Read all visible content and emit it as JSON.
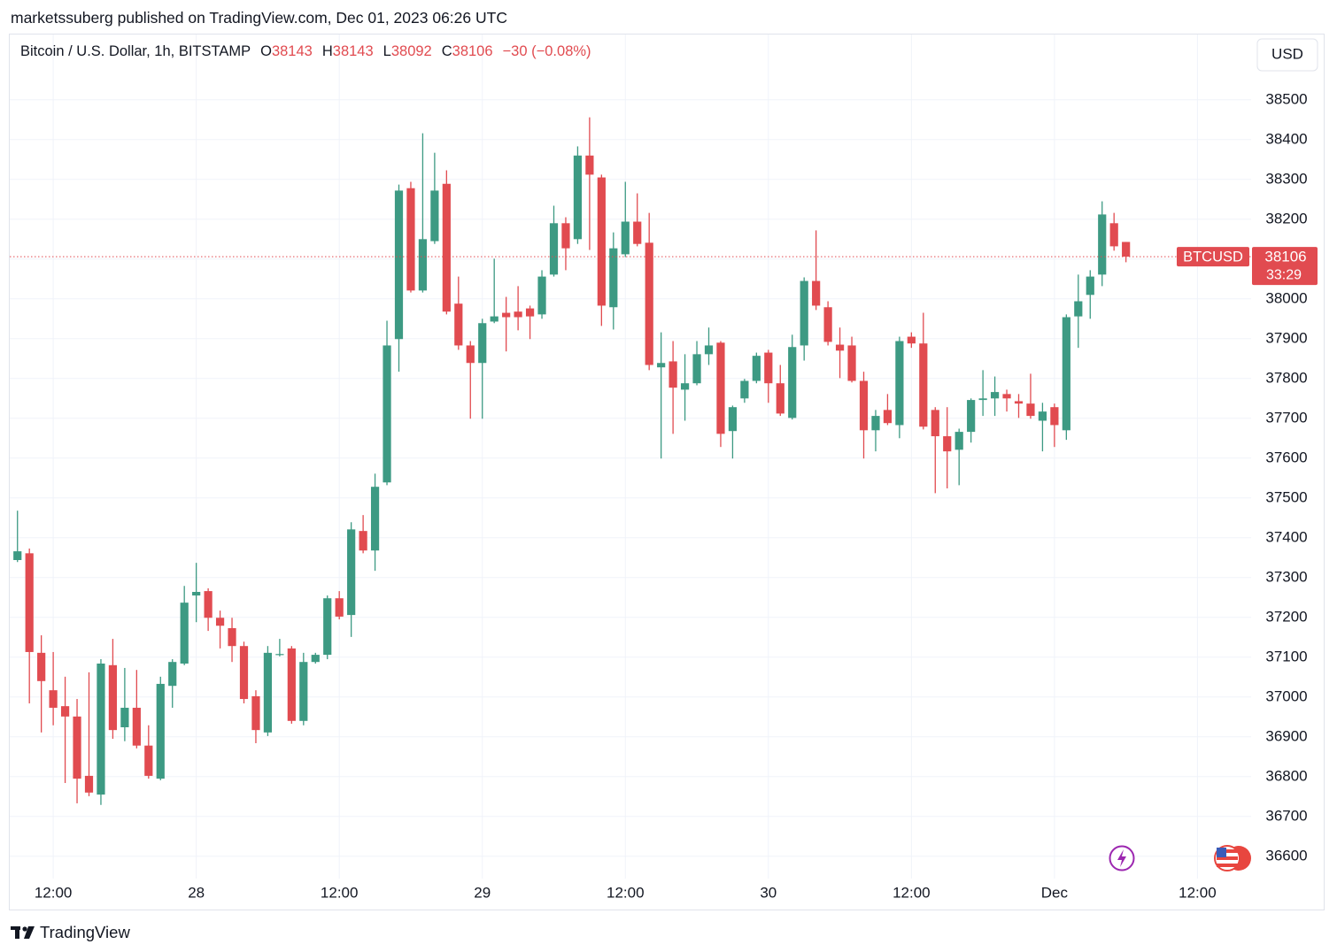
{
  "header": {
    "published": "marketssuberg published on TradingView.com, Dec 01, 2023 06:26 UTC"
  },
  "footer": {
    "brand": "TradingView"
  },
  "chart_data": {
    "type": "candlestick",
    "title": "Bitcoin / U.S. Dollar, 1h, BITSTAMP",
    "open_letter": "O",
    "high_letter": "H",
    "low_letter": "L",
    "close_letter": "C",
    "change": "−30 (−0.08%)",
    "currency": "USD",
    "symbol_tag": "BTCUSD",
    "countdown": "33:29",
    "up_color": "#3d9a83",
    "down_color": "#e14b50",
    "grid": true,
    "last_price_line": true,
    "ylim": [
      36544,
      38664
    ],
    "yticks": [
      36600,
      36700,
      36800,
      36900,
      37000,
      37100,
      37200,
      37300,
      37400,
      37500,
      37600,
      37700,
      37800,
      37900,
      38000,
      38100,
      38200,
      38300,
      38400,
      38500
    ],
    "categories": [
      null,
      null,
      null,
      "12:00",
      null,
      null,
      null,
      null,
      null,
      null,
      null,
      null,
      null,
      null,
      null,
      "28",
      null,
      null,
      null,
      null,
      null,
      null,
      null,
      null,
      null,
      null,
      null,
      "12:00",
      null,
      null,
      null,
      null,
      null,
      null,
      null,
      null,
      null,
      null,
      null,
      "29",
      null,
      null,
      null,
      null,
      null,
      null,
      null,
      null,
      null,
      null,
      null,
      "12:00",
      null,
      null,
      null,
      null,
      null,
      null,
      null,
      null,
      null,
      null,
      null,
      "30",
      null,
      null,
      null,
      null,
      null,
      null,
      null,
      null,
      null,
      null,
      null,
      "12:00",
      null,
      null,
      null,
      null,
      null,
      null,
      null,
      null,
      null,
      null,
      null,
      "Dec",
      null,
      null,
      null,
      null,
      null,
      null,
      null,
      null,
      null,
      null,
      null,
      "12:00",
      null,
      null,
      null,
      null
    ],
    "open": [
      37344,
      37361,
      37111,
      37017,
      36977,
      36951,
      36802,
      36755,
      37080,
      36924,
      36973,
      36878,
      36795,
      37028,
      37084,
      37255,
      37266,
      37199,
      37173,
      37128,
      37002,
      36911,
      37106,
      37122,
      36940,
      37088,
      37106,
      37248,
      37206,
      37417,
      37368,
      37539,
      37899,
      38278,
      38021,
      38145,
      38289,
      37988,
      37883,
      37839,
      37943,
      37965,
      37968,
      37976,
      37961,
      38061,
      38190,
      38150,
      38360,
      38305,
      37979,
      38112,
      38194,
      38141,
      37828,
      37843,
      37772,
      37788,
      37861,
      37890,
      37668,
      37750,
      37794,
      37865,
      37788,
      37701,
      37883,
      38045,
      37979,
      37885,
      37883,
      37794,
      37670,
      37721,
      37683,
      37905,
      37888,
      37721,
      37655,
      37621,
      37666,
      37746,
      37750,
      37761,
      37743,
      37737,
      37694,
      37728,
      37670,
      37956,
      38010,
      38061,
      38190,
      38143,
      null,
      null,
      null,
      null,
      null,
      null,
      null,
      null,
      null,
      null
    ],
    "high": [
      37468,
      37373,
      37155,
      37113,
      37051,
      36995,
      37062,
      37095,
      37146,
      37073,
      37068,
      36929,
      37051,
      37095,
      37279,
      37337,
      37273,
      37217,
      37199,
      37139,
      37017,
      37128,
      37146,
      37128,
      37111,
      37111,
      37255,
      37266,
      37439,
      37457,
      37561,
      37945,
      38287,
      38294,
      38416,
      38367,
      38323,
      38056,
      37894,
      37950,
      38101,
      38005,
      38032,
      37983,
      38072,
      38234,
      38205,
      38383,
      38456,
      38312,
      38167,
      38294,
      38265,
      38216,
      37916,
      37894,
      37861,
      37894,
      37928,
      37894,
      37732,
      37799,
      37865,
      37872,
      37834,
      37910,
      38054,
      38172,
      37994,
      37928,
      37905,
      37817,
      37721,
      37761,
      37905,
      37916,
      37965,
      37728,
      37728,
      37674,
      37750,
      37821,
      37805,
      37772,
      37761,
      37812,
      37739,
      37737,
      37961,
      38061,
      38072,
      38245,
      38216,
      38143,
      null,
      null,
      null,
      null,
      null,
      null,
      null,
      null,
      null,
      null
    ],
    "low": [
      37339,
      36984,
      36911,
      36929,
      36784,
      36733,
      36751,
      36729,
      36895,
      36889,
      36871,
      36795,
      36791,
      36973,
      37080,
      37188,
      37166,
      37122,
      37088,
      36984,
      36884,
      36902,
      37102,
      36933,
      36929,
      37084,
      37095,
      37195,
      37151,
      37361,
      37317,
      37532,
      37817,
      38016,
      38016,
      38138,
      37961,
      37872,
      37699,
      37699,
      37939,
      37868,
      37921,
      37899,
      37950,
      38056,
      38072,
      38138,
      38123,
      37932,
      37923,
      38105,
      38132,
      37821,
      37599,
      37661,
      37694,
      37783,
      37834,
      37628,
      37599,
      37739,
      37788,
      37739,
      37706,
      37697,
      37845,
      37972,
      37883,
      37801,
      37790,
      37599,
      37617,
      37683,
      37650,
      37877,
      37672,
      37512,
      37524,
      37532,
      37639,
      37706,
      37706,
      37717,
      37701,
      37699,
      37617,
      37628,
      37646,
      37877,
      37950,
      38032,
      38121,
      38092,
      null,
      null,
      null,
      null,
      null,
      null,
      null,
      null,
      null,
      null
    ],
    "close": [
      37366,
      37113,
      37040,
      36973,
      36951,
      36795,
      36760,
      37084,
      36917,
      36973,
      36878,
      36802,
      37033,
      37088,
      37237,
      37264,
      37199,
      37179,
      37128,
      36995,
      36917,
      37111,
      37108,
      36940,
      37088,
      37106,
      37248,
      37202,
      37421,
      37368,
      37528,
      37883,
      38272,
      38021,
      38150,
      38272,
      37968,
      37883,
      37839,
      37939,
      37956,
      37954,
      37954,
      37956,
      38056,
      38190,
      38127,
      38360,
      38312,
      37983,
      38127,
      38194,
      38138,
      37834,
      37839,
      37777,
      37788,
      37861,
      37883,
      37661,
      37728,
      37794,
      37857,
      37788,
      37712,
      37879,
      38045,
      37983,
      37892,
      37870,
      37794,
      37670,
      37706,
      37688,
      37894,
      37888,
      37679,
      37655,
      37617,
      37666,
      37746,
      37750,
      37766,
      37750,
      37737,
      37706,
      37717,
      37683,
      37954,
      37994,
      38056,
      38212,
      38132,
      38106,
      null,
      null,
      null,
      null,
      null,
      null,
      null,
      null,
      null,
      null
    ]
  }
}
